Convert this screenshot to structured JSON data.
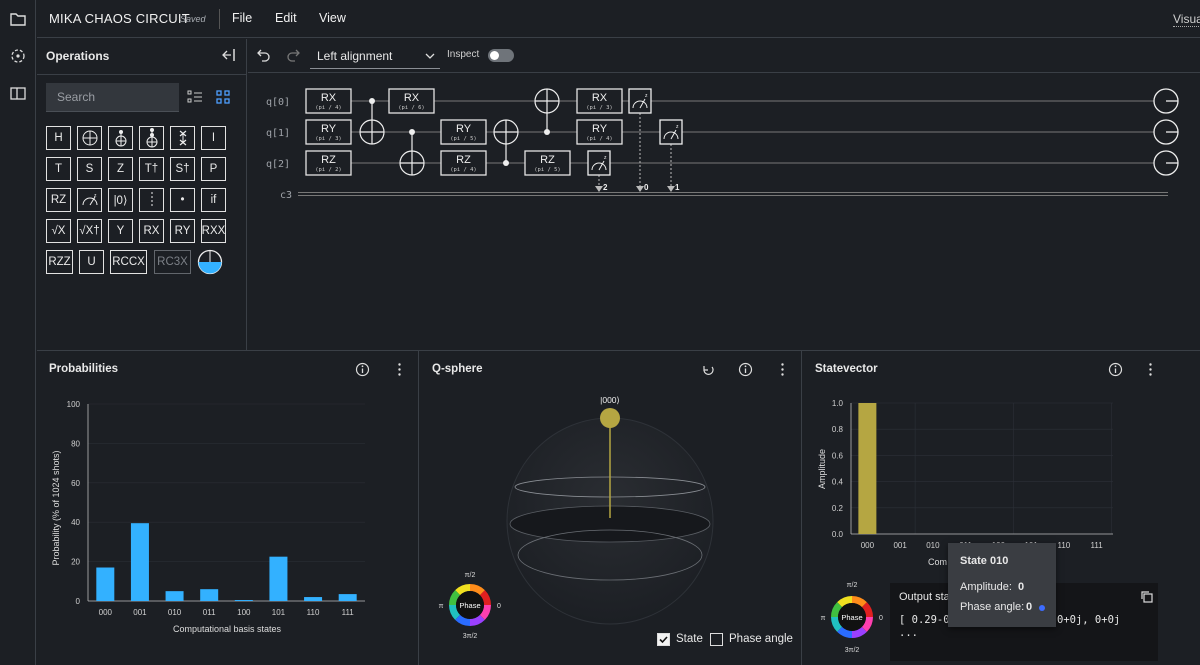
{
  "app": {
    "title": "MIKA CHAOS CIRCUIT",
    "saved": "Saved",
    "menus": [
      "File",
      "Edit",
      "View"
    ],
    "visual": "Visua"
  },
  "operations": {
    "title": "Operations",
    "search_placeholder": "Search",
    "gates": [
      [
        "H",
        "⊕",
        "ctrl-x",
        "ccx",
        "swap",
        "I"
      ],
      [
        "T",
        "S",
        "Z",
        "T†",
        "S†",
        "P"
      ],
      [
        "RZ",
        "measure",
        "|0⟩",
        "barrier",
        "•",
        "if"
      ],
      [
        "√X",
        "√X†",
        "Y",
        "RX",
        "RY",
        "RXX"
      ],
      [
        "RZZ",
        "U",
        "RCCX",
        "RC3X",
        "custom"
      ]
    ]
  },
  "toolbar": {
    "alignment": "Left alignment",
    "inspect": "Inspect"
  },
  "circuit": {
    "qubits": [
      "q[0]",
      "q[1]",
      "q[2]"
    ],
    "classical": "c3",
    "gates": [
      {
        "name": "RX",
        "param": "(pi / 4)",
        "q": 0,
        "col": 0
      },
      {
        "name": "RY",
        "param": "(pi / 3)",
        "q": 1,
        "col": 0
      },
      {
        "name": "RZ",
        "param": "(pi / 2)",
        "q": 2,
        "col": 0
      },
      {
        "name": "RX",
        "param": "(pi / 6)",
        "q": 0,
        "col": 2
      },
      {
        "name": "RY",
        "param": "(pi / 5)",
        "q": 1,
        "col": 3
      },
      {
        "name": "RZ",
        "param": "(pi / 4)",
        "q": 2,
        "col": 3
      },
      {
        "name": "RZ",
        "param": "(pi / 5)",
        "q": 2,
        "col": 5
      },
      {
        "name": "RX",
        "param": "(pi / 3)",
        "q": 0,
        "col": 7
      },
      {
        "name": "RY",
        "param": "(pi / 4)",
        "q": 1,
        "col": 7
      }
    ],
    "measure_bits": [
      "2",
      "0",
      "1"
    ]
  },
  "probabilities": {
    "title": "Probabilities",
    "ylabel": "Probability (% of 1024 shots)",
    "xlabel": "Computational basis states"
  },
  "qsphere": {
    "title": "Q-sphere",
    "state_label": "|000⟩",
    "phase_center": "Phase",
    "phase_top": "π/2",
    "phase_left": "π",
    "phase_right": "0",
    "phase_bottom": "3π/2",
    "state_check": "State",
    "phase_check": "Phase angle"
  },
  "statevector": {
    "title": "Statevector",
    "ylabel": "Amplitude",
    "xlabel_partial": "Com",
    "output_label": "Output sta",
    "output_line1": "[ 0.29-0",
    "output_line1b": "0+0j, 0+0j",
    "output_line2": "...",
    "tooltip": {
      "title": "State 010",
      "amp_label": "Amplitude:",
      "amp_value": "0",
      "phase_label": "Phase angle:",
      "phase_value": "0"
    }
  },
  "chart_data": [
    {
      "type": "bar",
      "title": "Probabilities",
      "xlabel": "Computational basis states",
      "ylabel": "Probability (% of 1024 shots)",
      "categories": [
        "000",
        "001",
        "010",
        "011",
        "100",
        "101",
        "110",
        "111"
      ],
      "values": [
        17,
        39.5,
        5,
        6,
        0.5,
        22.5,
        2,
        3.5
      ],
      "ylim": [
        0,
        100
      ],
      "yticks": [
        0,
        20,
        40,
        60,
        80,
        100
      ],
      "color": "#33b1ff"
    },
    {
      "type": "bar",
      "title": "Statevector",
      "ylabel": "Amplitude",
      "categories": [
        "000",
        "001",
        "010",
        "011",
        "100",
        "101",
        "110",
        "111"
      ],
      "values": [
        1.0,
        0,
        0,
        0,
        0,
        0,
        0,
        0
      ],
      "ylim": [
        0,
        1.0
      ],
      "yticks": [
        0,
        0.2,
        0.4,
        0.6,
        0.8,
        1.0
      ],
      "color": "#b5a642"
    }
  ],
  "colors": {
    "accent": "#33b1ff",
    "sv_bar": "#b5a642",
    "bg": "#1c1f24"
  }
}
